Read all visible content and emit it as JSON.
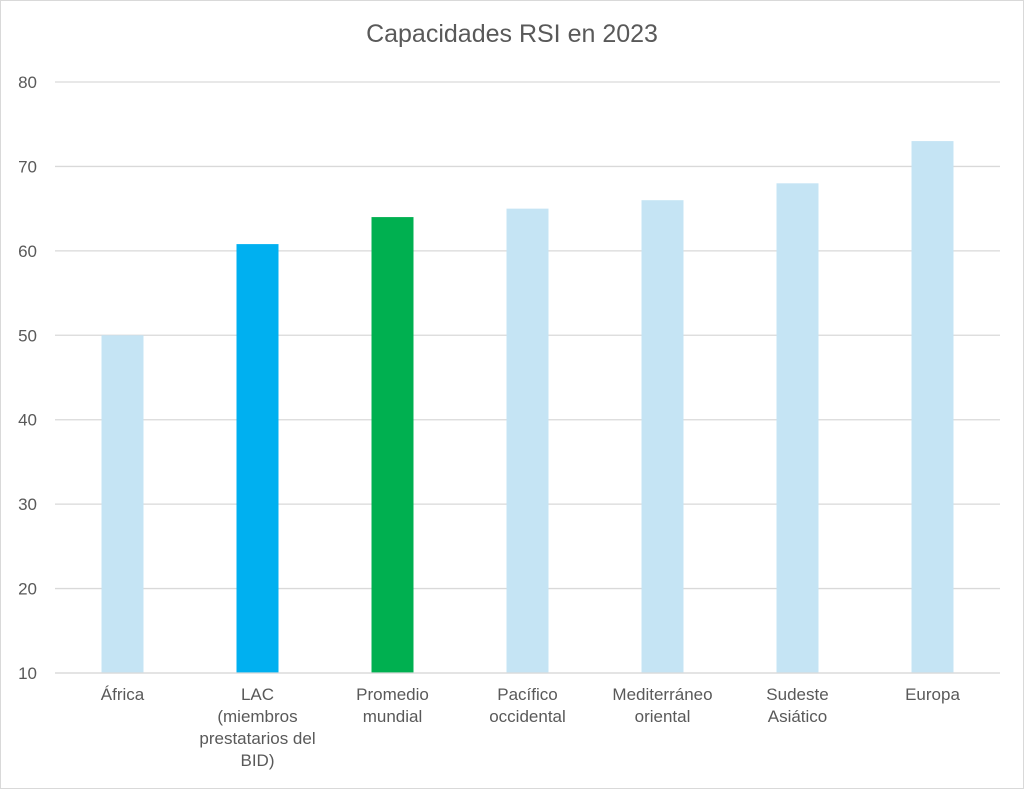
{
  "chart_data": {
    "type": "bar",
    "title": "Capacidades RSI en 2023",
    "xlabel": "",
    "ylabel": "",
    "ylim": [
      10,
      80
    ],
    "yticks": [
      10,
      20,
      30,
      40,
      50,
      60,
      70,
      80
    ],
    "grid": true,
    "legend": "none",
    "categories": [
      [
        "África"
      ],
      [
        "LAC",
        "(miembros",
        "prestatarios del",
        "BID)"
      ],
      [
        "Promedio",
        "mundial"
      ],
      [
        "Pacífico",
        "occidental"
      ],
      [
        "Mediterráneo",
        "oriental"
      ],
      [
        "Sudeste",
        "Asiático"
      ],
      [
        "Europa"
      ]
    ],
    "values": [
      50,
      60.8,
      64,
      65,
      66,
      68,
      73
    ],
    "colors": [
      "#c5e4f4",
      "#00b0f0",
      "#00b050",
      "#c5e4f4",
      "#c5e4f4",
      "#c5e4f4",
      "#c5e4f4"
    ]
  }
}
